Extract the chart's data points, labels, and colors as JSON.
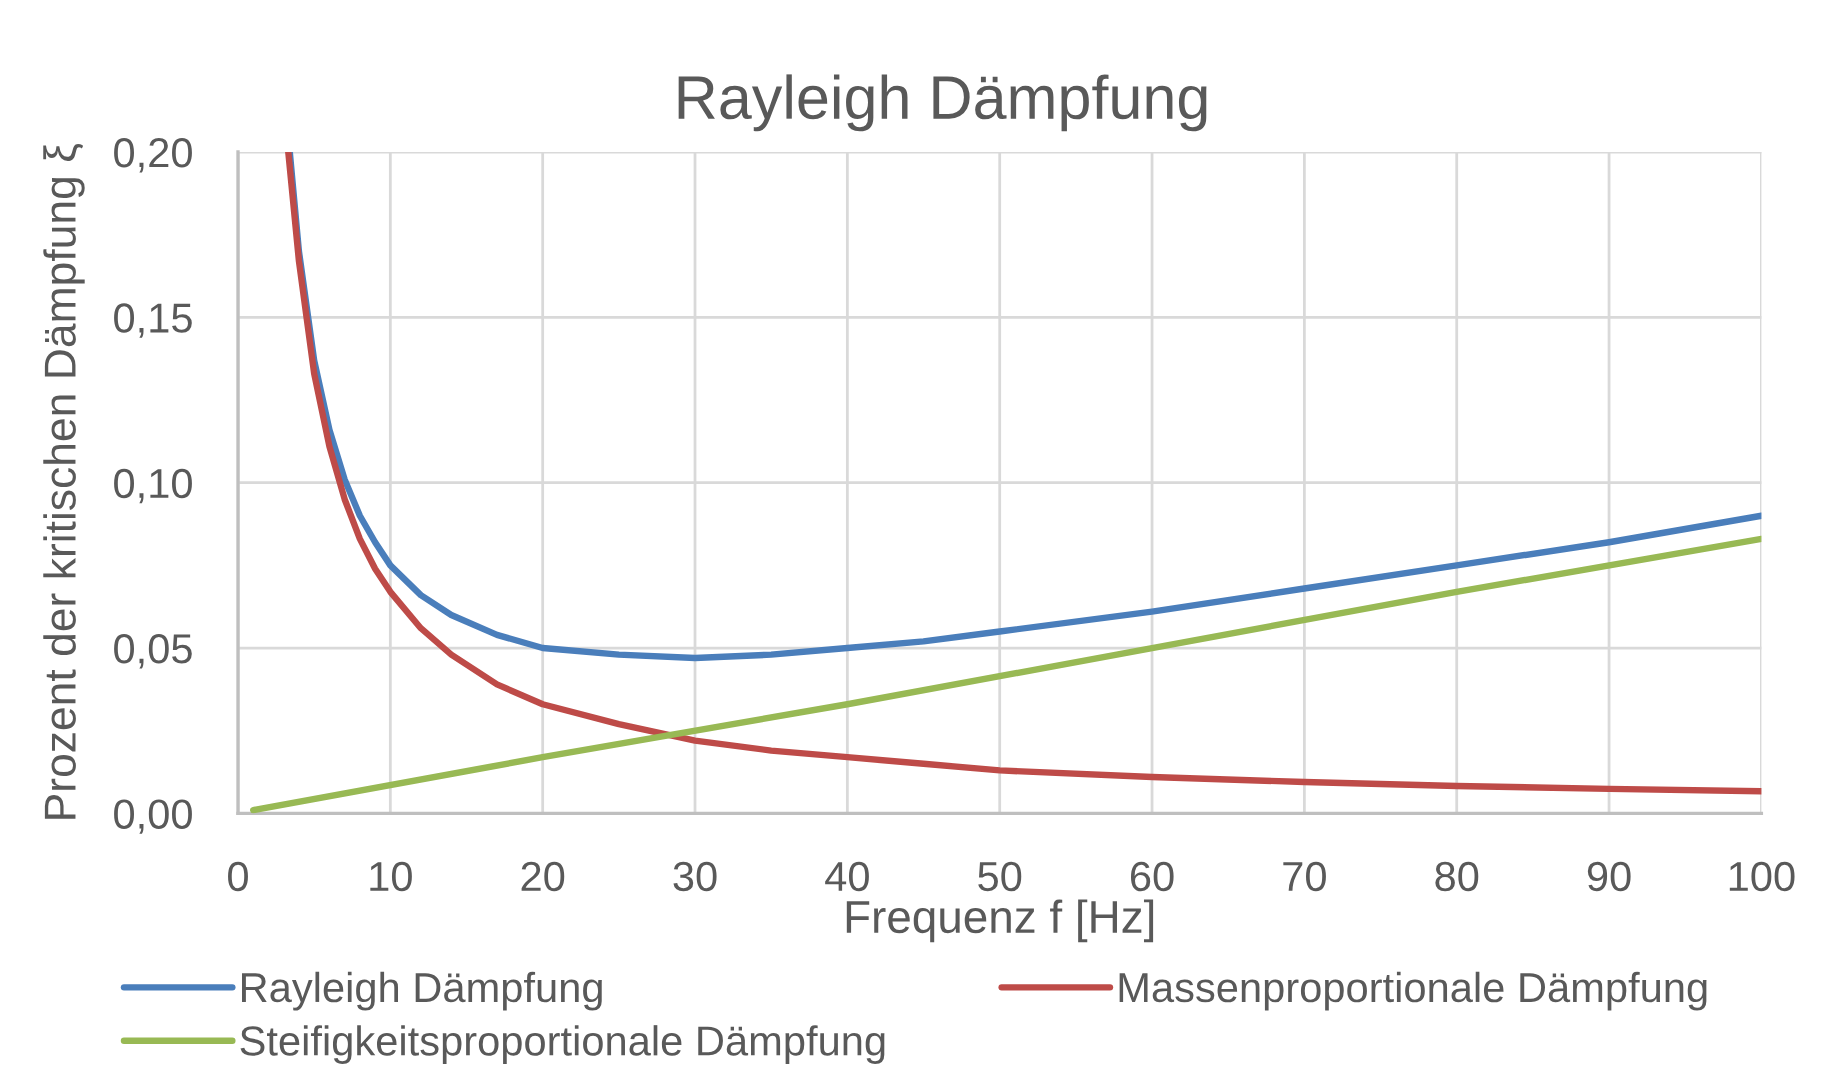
{
  "chart_data": {
    "type": "line",
    "title": "Rayleigh Dämpfung",
    "xlabel": "Frequenz f [Hz]",
    "ylabel": "Prozent der kritischen Dämpfung ξ",
    "series": [
      {
        "name": "Rayleigh Dämpfung",
        "color": "#4a7ebb",
        "x": [
          3.4,
          4,
          5,
          6,
          7,
          8,
          9,
          10,
          12,
          14,
          17,
          20,
          25,
          30,
          35,
          40,
          45,
          50,
          60,
          70,
          80,
          90,
          100
        ],
        "values": [
          0.2,
          0.17,
          0.137,
          0.116,
          0.101,
          0.09,
          0.082,
          0.075,
          0.066,
          0.06,
          0.054,
          0.05,
          0.048,
          0.047,
          0.048,
          0.05,
          0.052,
          0.055,
          0.061,
          0.068,
          0.075,
          0.082,
          0.09
        ]
      },
      {
        "name": "Massenproportionale Dämpfung",
        "color": "#be4b48",
        "x": [
          3.3,
          4,
          5,
          6,
          7,
          8,
          9,
          10,
          12,
          14,
          17,
          20,
          25,
          30,
          35,
          40,
          45,
          50,
          60,
          70,
          80,
          90,
          100
        ],
        "values": [
          0.2,
          0.167,
          0.133,
          0.111,
          0.095,
          0.083,
          0.074,
          0.067,
          0.056,
          0.048,
          0.039,
          0.033,
          0.027,
          0.022,
          0.019,
          0.017,
          0.015,
          0.013,
          0.011,
          0.0095,
          0.0083,
          0.0074,
          0.0067
        ]
      },
      {
        "name": "Steifigkeitsproportionale Dämpfung",
        "color": "#98b954",
        "x": [
          1,
          20,
          40,
          60,
          80,
          100
        ],
        "values": [
          0.001,
          0.017,
          0.033,
          0.05,
          0.067,
          0.083
        ]
      }
    ],
    "xlim": [
      0,
      100
    ],
    "xticks": [
      0,
      10,
      20,
      30,
      40,
      50,
      60,
      70,
      80,
      90,
      100
    ],
    "ylim": [
      0,
      0.2
    ],
    "yticks": [
      {
        "value": 0,
        "label": "0,00"
      },
      {
        "value": 0.05,
        "label": "0,05"
      },
      {
        "value": 0.1,
        "label": "0,10"
      },
      {
        "value": 0.15,
        "label": "0,15"
      },
      {
        "value": 0.2,
        "label": "0,20"
      }
    ],
    "grid": true,
    "legend": "bottom",
    "line_style": "solid"
  }
}
